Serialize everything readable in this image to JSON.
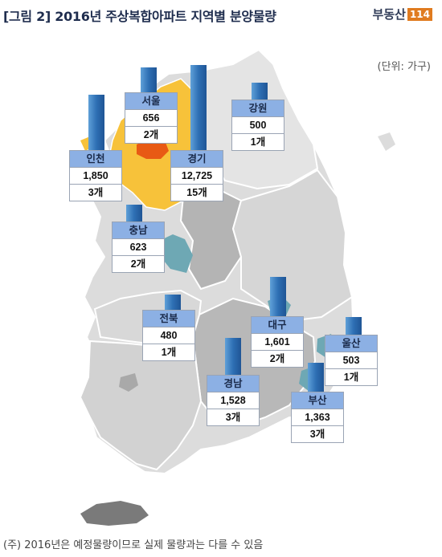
{
  "title": "[그림 2] 2016년 주상복합아파트 지역별 분양물량",
  "logo": {
    "text": "부동산",
    "number": "114"
  },
  "unit": "(단위: 가구)",
  "footnote": "(주)  2016년은  예정물량이므로  실제  물량과는  다를  수  있음",
  "colors": {
    "bar": "#2e6fb4",
    "label_bg": "#8cb0e4",
    "gyeonggi": "#f7c23a",
    "seoul": "#e85a14",
    "sejong": "#6ea8b4",
    "map_light": "#dcdcdc",
    "map_dark": "#b4b4b4"
  },
  "chart_data": {
    "type": "bar",
    "regions": [
      {
        "name": "서울",
        "units": "656",
        "count": "2개",
        "value": 656
      },
      {
        "name": "강원",
        "units": "500",
        "count": "1개",
        "value": 500
      },
      {
        "name": "인천",
        "units": "1,850",
        "count": "3개",
        "value": 1850
      },
      {
        "name": "경기",
        "units": "12,725",
        "count": "15개",
        "value": 12725
      },
      {
        "name": "충남",
        "units": "623",
        "count": "2개",
        "value": 623
      },
      {
        "name": "전북",
        "units": "480",
        "count": "1개",
        "value": 480
      },
      {
        "name": "대구",
        "units": "1,601",
        "count": "2개",
        "value": 1601
      },
      {
        "name": "울산",
        "units": "503",
        "count": "1개",
        "value": 503
      },
      {
        "name": "경남",
        "units": "1,528",
        "count": "3개",
        "value": 1528
      },
      {
        "name": "부산",
        "units": "1,363",
        "count": "3개",
        "value": 1363
      }
    ]
  }
}
